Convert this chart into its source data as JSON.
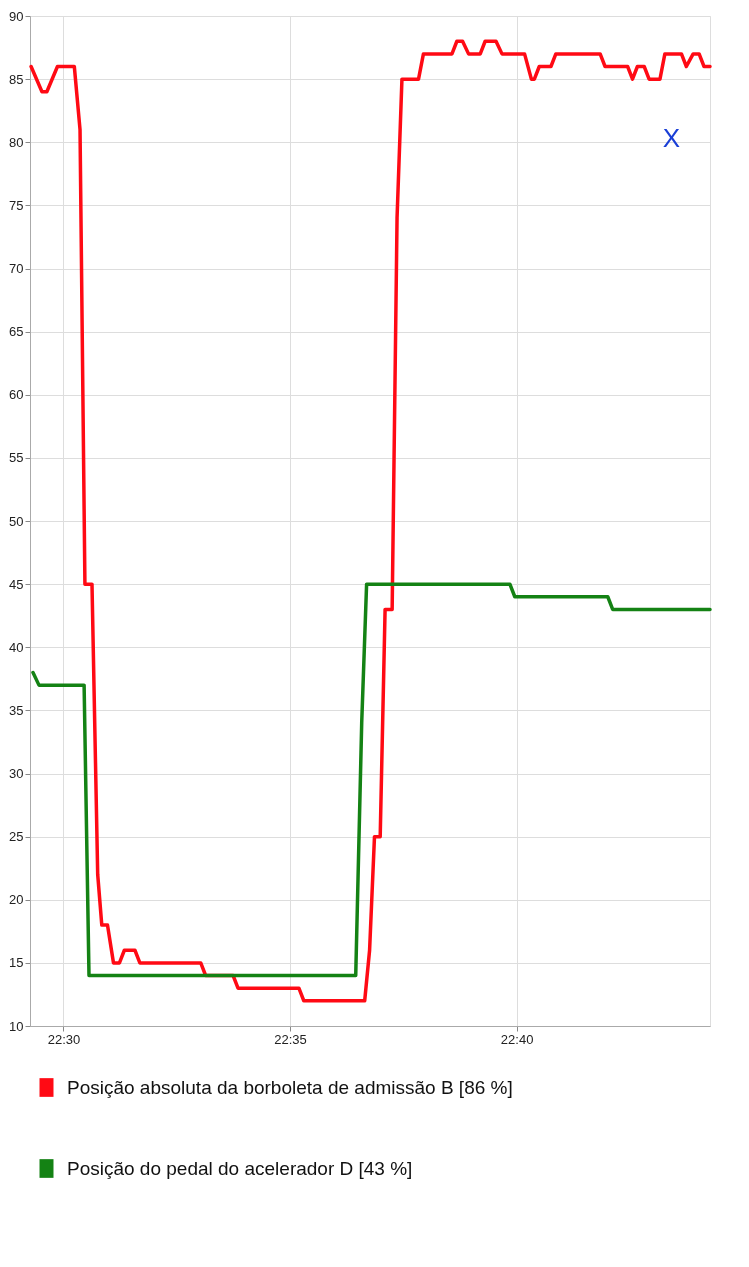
{
  "chart_data": {
    "type": "line",
    "annotations": [
      "X"
    ],
    "xlim": [
      22.4877,
      22.7378
    ],
    "xticks": [
      {
        "value": 22.5,
        "label": "22:30"
      },
      {
        "value": 22.58333,
        "label": "22:35"
      },
      {
        "value": 22.66667,
        "label": "22:40"
      }
    ],
    "ylim": [
      10,
      90
    ],
    "yticks": [
      10,
      15,
      20,
      25,
      30,
      35,
      40,
      45,
      50,
      55,
      60,
      65,
      70,
      75,
      80,
      85,
      90
    ],
    "grid": true,
    "legend": "bottom",
    "marker": "none",
    "line_style": "solid",
    "series": [
      {
        "name": "Posição absoluta da borboleta de admissão B [86 %]",
        "color": "#ff0a14",
        "x": [
          22.4881,
          22.4921,
          22.4939,
          22.4978,
          22.504,
          22.5061,
          22.5079,
          22.5105,
          22.5126,
          22.5141,
          22.5162,
          22.5184,
          22.5206,
          22.5224,
          22.5263,
          22.5281,
          22.5505,
          22.5523,
          22.5624,
          22.5642,
          22.5866,
          22.5884,
          22.6108,
          22.6126,
          22.6144,
          22.6165,
          22.6183,
          22.6209,
          22.6227,
          22.6245,
          22.6306,
          22.6324,
          22.6429,
          22.6447,
          22.6468,
          22.649,
          22.6533,
          22.6551,
          22.6591,
          22.6613,
          22.6696,
          22.6721,
          22.6732,
          22.675,
          22.6793,
          22.6811,
          22.6974,
          22.6992,
          22.7075,
          22.7093,
          22.7111,
          22.7136,
          22.7154,
          22.7194,
          22.7212,
          22.7273,
          22.7291,
          22.7316,
          22.7338,
          22.7356,
          22.7378
        ],
        "values": [
          86,
          84,
          84,
          86,
          86,
          81,
          45,
          45,
          22,
          18,
          18,
          15,
          15,
          16,
          16,
          15,
          15,
          14,
          14,
          13,
          13,
          12,
          12,
          16,
          25,
          25,
          43,
          43,
          74,
          85,
          85,
          87,
          87,
          88,
          88,
          87,
          87,
          88,
          88,
          87,
          87,
          85,
          85,
          86,
          86,
          87,
          87,
          86,
          86,
          85,
          86,
          86,
          85,
          85,
          87,
          87,
          86,
          87,
          87,
          86,
          86
        ]
      },
      {
        "name": "Posição do pedal do acelerador D [43 %]",
        "color": "#148214",
        "x": [
          22.4888,
          22.491,
          22.5076,
          22.5094,
          22.6075,
          22.6097,
          22.6115,
          22.6642,
          22.666,
          22.7002,
          22.702,
          22.7378
        ],
        "values": [
          38,
          37,
          37,
          14,
          14,
          34,
          45,
          45,
          44,
          44,
          43,
          43
        ]
      }
    ]
  }
}
